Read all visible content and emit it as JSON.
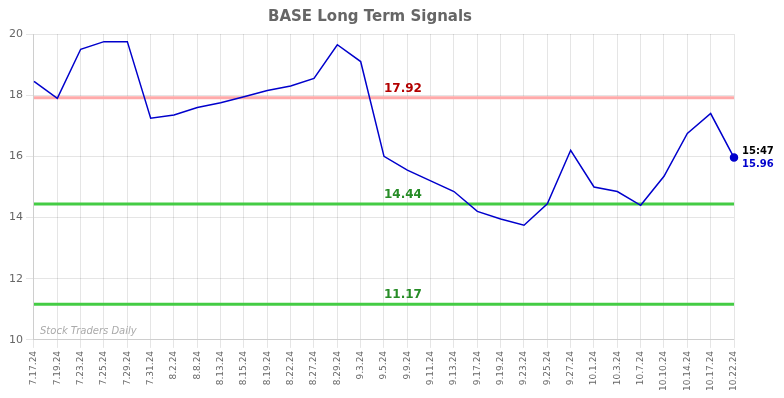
{
  "chart_data": {
    "type": "line",
    "title": "BASE Long Term Signals",
    "categories": [
      "7.17.24",
      "7.19.24",
      "7.23.24",
      "7.25.24",
      "7.29.24",
      "7.31.24",
      "8.2.24",
      "8.8.24",
      "8.13.24",
      "8.15.24",
      "8.19.24",
      "8.22.24",
      "8.27.24",
      "8.29.24",
      "9.3.24",
      "9.5.24",
      "9.9.24",
      "9.11.24",
      "9.13.24",
      "9.17.24",
      "9.19.24",
      "9.23.24",
      "9.25.24",
      "9.27.24",
      "10.1.24",
      "10.3.24",
      "10.7.24",
      "10.10.24",
      "10.14.24",
      "10.17.24",
      "10.22.24"
    ],
    "values": [
      18.45,
      17.9,
      19.5,
      19.75,
      19.75,
      17.25,
      17.35,
      17.6,
      17.75,
      17.95,
      18.15,
      18.3,
      18.55,
      19.65,
      19.1,
      16.0,
      15.55,
      15.2,
      14.85,
      14.2,
      13.95,
      13.75,
      14.45,
      16.2,
      15.0,
      14.85,
      14.4,
      15.35,
      16.75,
      17.4,
      15.96
    ],
    "color": "#0000cc",
    "hlines": [
      {
        "value": 17.92,
        "label": "17.92",
        "color": "#ffaaaa"
      },
      {
        "value": 14.44,
        "label": "14.44",
        "color": "#44cc44"
      },
      {
        "value": 11.17,
        "label": "11.17",
        "color": "#44cc44"
      }
    ],
    "annotations": [
      {
        "text": "15:47",
        "x": "10.22.24",
        "y": 15.96
      },
      {
        "text": "15.96",
        "x": "10.22.24",
        "y": 15.96
      },
      {
        "text": "Stock Traders Daily"
      }
    ],
    "ylim": [
      10,
      20
    ],
    "yticks": [
      10,
      12,
      14,
      16,
      18,
      20
    ],
    "grid": true
  }
}
